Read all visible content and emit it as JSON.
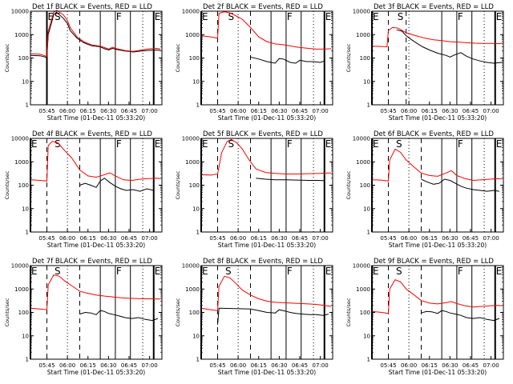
{
  "colors": {
    "events": "#000000",
    "lld": "#ff0000",
    "frame": "#000000",
    "background": "#ffffff"
  },
  "figure": {
    "xlabel": "Start Time (01-Dec-11 05:33:20)",
    "ylabel": "Counts/sec",
    "ytick_labels": [
      "1",
      "10",
      "100",
      "1000",
      "10000"
    ],
    "xtick_labels": [
      "05:45",
      "06:00",
      "06:15",
      "06:30",
      "06:45",
      "07:00"
    ],
    "event_letters": [
      "E",
      "S",
      "F",
      "E"
    ]
  },
  "chart_data": [
    {
      "type": "line",
      "title": "Det 1f BLACK = Events, RED = LLD",
      "scale": "log",
      "ylim": [
        1,
        10000
      ],
      "xlim": [
        "05:33",
        "07:09"
      ],
      "series": [
        {
          "name": "BLACK = Events",
          "x": [
            "05:33",
            "05:40",
            "05:45",
            "05:46",
            "05:50",
            "05:52",
            "05:57",
            "06:00",
            "06:02",
            "06:07",
            "06:12",
            "06:15",
            "06:18",
            "06:24",
            "06:27",
            "06:30",
            "06:33",
            "06:36",
            "06:42",
            "06:45",
            "06:48",
            "06:54",
            "06:58",
            "07:05",
            "07:08"
          ],
          "y": [
            130,
            125,
            105,
            1000,
            7000,
            9000,
            5000,
            3000,
            1500,
            700,
            450,
            380,
            330,
            300,
            250,
            220,
            260,
            230,
            200,
            190,
            180,
            200,
            210,
            220,
            210
          ]
        },
        {
          "name": "RED = LLD",
          "x": [
            "05:33",
            "05:40",
            "05:45",
            "05:46",
            "05:50",
            "05:52",
            "05:57",
            "06:00",
            "06:02",
            "06:07",
            "06:12",
            "06:15",
            "06:18",
            "06:24",
            "06:27",
            "06:30",
            "06:33",
            "06:36",
            "06:42",
            "06:45",
            "06:48",
            "06:54",
            "06:58",
            "07:05",
            "07:08"
          ],
          "y": [
            150,
            145,
            115,
            1400,
            9000,
            11000,
            7000,
            4000,
            2000,
            800,
            500,
            420,
            360,
            320,
            280,
            240,
            290,
            250,
            210,
            200,
            190,
            220,
            240,
            260,
            240
          ]
        }
      ],
      "event_lines": {
        "E": [
          "05:45",
          "07:03"
        ],
        "dashed": [
          "05:45",
          "06:09"
        ],
        "S": "05:50",
        "F": [
          "06:24",
          "06:35",
          "06:46"
        ],
        "dotted": [
          "06:00",
          "06:55"
        ]
      }
    },
    {
      "type": "line",
      "title": "Det 2f BLACK = Events, RED = LLD",
      "scale": "log",
      "ylim": [
        1,
        10000
      ],
      "xlim": [
        "05:33",
        "07:09"
      ],
      "series": [
        {
          "name": "BLACK = Events",
          "x": [
            "06:09",
            "06:15",
            "06:21",
            "06:27",
            "06:30",
            "06:33",
            "06:38",
            "06:42",
            "06:45",
            "06:50",
            "06:55",
            "07:00",
            "07:03"
          ],
          "y": [
            110,
            90,
            70,
            60,
            95,
            90,
            65,
            60,
            80,
            70,
            70,
            65,
            75
          ]
        },
        {
          "name": "RED = LLD",
          "x": [
            "05:33",
            "05:40",
            "05:45",
            "05:46",
            "05:50",
            "05:54",
            "05:58",
            "06:03",
            "06:09",
            "06:15",
            "06:21",
            "06:27",
            "06:33",
            "06:39",
            "06:45",
            "06:51",
            "06:57",
            "07:03",
            "07:08"
          ],
          "y": [
            900,
            800,
            700,
            8000,
            9500,
            8500,
            6500,
            4500,
            2000,
            800,
            500,
            400,
            370,
            320,
            280,
            260,
            240,
            240,
            250
          ]
        }
      ],
      "event_lines": {
        "E": [
          "05:33",
          "07:03"
        ],
        "dashed": [
          "05:45",
          "06:09"
        ],
        "S": "05:52",
        "F": [
          "06:24",
          "06:35",
          "06:46"
        ],
        "dotted": [
          "06:00",
          "06:55"
        ]
      }
    },
    {
      "type": "line",
      "title": "Det 3f BLACK = Events, RED = LLD",
      "scale": "log",
      "ylim": [
        1,
        10000
      ],
      "xlim": [
        "05:33",
        "07:09"
      ],
      "series": [
        {
          "name": "BLACK = Events",
          "x": [
            "05:51",
            "05:55",
            "05:58",
            "06:02",
            "06:06",
            "06:10",
            "06:15",
            "06:21",
            "06:27",
            "06:30",
            "06:34",
            "06:38",
            "06:42",
            "06:47",
            "06:52",
            "06:57",
            "07:02",
            "07:08"
          ],
          "y": [
            1600,
            1400,
            900,
            600,
            420,
            300,
            220,
            160,
            130,
            110,
            140,
            170,
            120,
            90,
            75,
            65,
            60,
            65
          ]
        },
        {
          "name": "RED = LLD",
          "x": [
            "05:33",
            "05:40",
            "05:44",
            "05:45",
            "05:48",
            "05:52",
            "05:58",
            "06:05",
            "06:12",
            "06:18",
            "06:24",
            "06:30",
            "06:36",
            "06:42",
            "06:48",
            "06:54",
            "07:00",
            "07:06",
            "07:08"
          ],
          "y": [
            320,
            310,
            300,
            1500,
            2000,
            1900,
            1200,
            900,
            700,
            600,
            550,
            500,
            480,
            450,
            430,
            420,
            420,
            410,
            430
          ]
        }
      ],
      "event_lines": {
        "E": [
          "05:33",
          "07:03"
        ],
        "dashed": [
          "05:45",
          "05:58"
        ],
        "S": "05:51",
        "F": [
          "06:24",
          "06:35",
          "06:46"
        ],
        "dotted": [
          "06:00",
          "06:55"
        ]
      }
    },
    {
      "type": "line",
      "title": "Det 4f BLACK = Events, RED = LLD",
      "scale": "log",
      "ylim": [
        1,
        10000
      ],
      "xlim": [
        "05:33",
        "07:09"
      ],
      "series": [
        {
          "name": "BLACK = Events",
          "x": [
            "06:09",
            "06:13",
            "06:17",
            "06:21",
            "06:24",
            "06:27",
            "06:31",
            "06:35",
            "06:39",
            "06:43",
            "06:48",
            "06:53",
            "06:58",
            "07:03"
          ],
          "y": [
            100,
            120,
            100,
            80,
            150,
            200,
            130,
            90,
            70,
            60,
            65,
            55,
            70,
            60
          ]
        },
        {
          "name": "RED = LLD",
          "x": [
            "05:33",
            "05:40",
            "05:45",
            "05:46",
            "05:49",
            "05:53",
            "05:58",
            "06:03",
            "06:09",
            "06:15",
            "06:21",
            "06:27",
            "06:31",
            "06:35",
            "06:41",
            "06:47",
            "06:53",
            "06:59",
            "07:05",
            "07:08"
          ],
          "y": [
            170,
            160,
            150,
            5000,
            7500,
            6500,
            3000,
            1500,
            450,
            250,
            220,
            280,
            340,
            250,
            170,
            160,
            180,
            190,
            200,
            190
          ]
        }
      ],
      "event_lines": {
        "E": [
          "05:33",
          "07:03"
        ],
        "dashed": [
          "05:45",
          "06:09"
        ],
        "S": "05:50",
        "F": [
          "06:24",
          "06:35",
          "06:46"
        ],
        "dotted": [
          "06:00",
          "06:55"
        ]
      }
    },
    {
      "type": "line",
      "title": "Det 5f BLACK = Events, RED = LLD",
      "scale": "log",
      "ylim": [
        1,
        10000
      ],
      "xlim": [
        "05:33",
        "07:09"
      ],
      "series": [
        {
          "name": "BLACK = Events",
          "x": [
            "06:13",
            "06:20",
            "06:27",
            "06:35",
            "06:43",
            "06:51",
            "06:59",
            "07:03"
          ],
          "y": [
            200,
            180,
            170,
            170,
            165,
            160,
            160,
            155
          ]
        },
        {
          "name": "RED = LLD",
          "x": [
            "05:33",
            "05:40",
            "05:45",
            "05:48",
            "05:52",
            "05:55",
            "05:59",
            "06:03",
            "06:08",
            "06:13",
            "06:20",
            "06:27",
            "06:35",
            "06:43",
            "06:51",
            "06:59",
            "07:06",
            "07:08"
          ],
          "y": [
            280,
            270,
            300,
            2500,
            7500,
            9000,
            6500,
            3500,
            1200,
            500,
            350,
            320,
            300,
            300,
            310,
            320,
            330,
            330
          ]
        }
      ],
      "event_lines": {
        "E": [
          "05:33",
          "07:03"
        ],
        "dashed": [
          "05:45",
          "06:09"
        ],
        "S": "05:52",
        "F": [
          "06:24",
          "06:35",
          "06:46"
        ],
        "dotted": [
          "06:00",
          "06:55"
        ]
      }
    },
    {
      "type": "line",
      "title": "Det 6f BLACK = Events, RED = LLD",
      "scale": "log",
      "ylim": [
        1,
        10000
      ],
      "xlim": [
        "05:33",
        "07:09"
      ],
      "series": [
        {
          "name": "BLACK = Events",
          "x": [
            "06:09",
            "06:13",
            "06:18",
            "06:22",
            "06:26",
            "06:30",
            "06:34",
            "06:38",
            "06:42",
            "06:47",
            "06:52",
            "06:57",
            "07:02",
            "07:06"
          ],
          "y": [
            180,
            140,
            110,
            120,
            180,
            160,
            120,
            90,
            75,
            65,
            60,
            55,
            60,
            55
          ]
        },
        {
          "name": "RED = LLD",
          "x": [
            "05:33",
            "05:40",
            "05:45",
            "05:46",
            "05:50",
            "05:54",
            "05:58",
            "06:03",
            "06:09",
            "06:15",
            "06:21",
            "06:27",
            "06:31",
            "06:35",
            "06:41",
            "06:47",
            "06:53",
            "06:59",
            "07:05",
            "07:08"
          ],
          "y": [
            170,
            165,
            150,
            1200,
            3500,
            2500,
            1200,
            650,
            330,
            260,
            240,
            330,
            420,
            260,
            190,
            160,
            170,
            180,
            190,
            185
          ]
        }
      ],
      "event_lines": {
        "E": [
          "05:33",
          "07:03"
        ],
        "dashed": [
          "05:45",
          "06:09"
        ],
        "S": "05:50",
        "F": [
          "06:24",
          "06:35",
          "06:46"
        ],
        "dotted": [
          "06:00",
          "06:55"
        ]
      }
    },
    {
      "type": "line",
      "title": "Det 7f BLACK = Events, RED = LLD",
      "scale": "log",
      "ylim": [
        1,
        10000
      ],
      "xlim": [
        "05:33",
        "07:09"
      ],
      "series": [
        {
          "name": "BLACK = Events",
          "x": [
            "06:09",
            "06:13",
            "06:17",
            "06:21",
            "06:24",
            "06:27",
            "06:30",
            "06:34",
            "06:38",
            "06:42",
            "06:47",
            "06:52",
            "06:57",
            "07:02",
            "07:06"
          ],
          "y": [
            85,
            100,
            95,
            80,
            120,
            110,
            90,
            80,
            70,
            60,
            55,
            60,
            50,
            45,
            55
          ]
        },
        {
          "name": "RED = LLD",
          "x": [
            "05:33",
            "05:40",
            "05:45",
            "05:46",
            "05:50",
            "05:54",
            "05:58",
            "06:03",
            "06:09",
            "06:15",
            "06:21",
            "06:27",
            "06:33",
            "06:39",
            "06:45",
            "06:51",
            "06:57",
            "07:03",
            "07:08"
          ],
          "y": [
            150,
            140,
            130,
            1500,
            4000,
            3500,
            2200,
            1400,
            800,
            650,
            550,
            500,
            460,
            420,
            400,
            390,
            380,
            380,
            370
          ]
        }
      ],
      "event_lines": {
        "E": [
          "05:33",
          "07:03"
        ],
        "dashed": [
          "05:45",
          "06:09"
        ],
        "S": "05:50",
        "F": [
          "06:24",
          "06:35",
          "06:46"
        ],
        "dotted": [
          "06:00",
          "06:55"
        ]
      }
    },
    {
      "type": "line",
      "title": "Det 8f BLACK = Events, RED = LLD",
      "scale": "log",
      "ylim": [
        1,
        10000
      ],
      "xlim": [
        "05:33",
        "07:09"
      ],
      "series": [
        {
          "name": "BLACK = Events",
          "x": [
            "05:45",
            "05:46",
            "06:09",
            "06:15",
            "06:21",
            "06:27",
            "06:30",
            "06:34",
            "06:38",
            "06:42",
            "06:47",
            "06:52",
            "06:57",
            "07:02",
            "07:06"
          ],
          "y": [
            30,
            150,
            140,
            120,
            100,
            95,
            130,
            115,
            100,
            90,
            85,
            80,
            80,
            75,
            85
          ]
        },
        {
          "name": "RED = LLD",
          "x": [
            "05:33",
            "05:40",
            "05:45",
            "05:46",
            "05:50",
            "05:54",
            "05:58",
            "06:03",
            "06:09",
            "06:15",
            "06:21",
            "06:27",
            "06:33",
            "06:39",
            "06:45",
            "06:51",
            "06:57",
            "07:03",
            "07:08"
          ],
          "y": [
            150,
            130,
            120,
            1300,
            3500,
            3000,
            1800,
            900,
            550,
            380,
            300,
            270,
            260,
            250,
            240,
            230,
            220,
            200,
            180
          ]
        }
      ],
      "event_lines": {
        "E": [
          "05:33",
          "07:03"
        ],
        "dashed": [
          "05:45",
          "06:09"
        ],
        "S": "05:50",
        "F": [
          "06:24",
          "06:35",
          "06:46"
        ],
        "dotted": [
          "06:00",
          "06:55"
        ]
      }
    },
    {
      "type": "line",
      "title": "Det 9f BLACK = Events, RED = LLD",
      "scale": "log",
      "ylim": [
        1,
        10000
      ],
      "xlim": [
        "05:33",
        "07:09"
      ],
      "series": [
        {
          "name": "BLACK = Events",
          "x": [
            "06:09",
            "06:13",
            "06:17",
            "06:21",
            "06:24",
            "06:27",
            "06:30",
            "06:34",
            "06:38",
            "06:42",
            "06:47",
            "06:52",
            "06:57",
            "07:02",
            "07:06"
          ],
          "y": [
            95,
            110,
            105,
            90,
            120,
            110,
            95,
            85,
            75,
            60,
            55,
            60,
            50,
            45,
            55
          ]
        },
        {
          "name": "RED = LLD",
          "x": [
            "05:33",
            "05:40",
            "05:45",
            "05:46",
            "05:50",
            "05:54",
            "05:58",
            "06:03",
            "06:09",
            "06:15",
            "06:21",
            "06:27",
            "06:31",
            "06:35",
            "06:41",
            "06:47",
            "06:53",
            "06:59",
            "07:05",
            "07:08"
          ],
          "y": [
            110,
            100,
            90,
            1000,
            2500,
            2000,
            1000,
            600,
            320,
            250,
            230,
            260,
            290,
            240,
            190,
            170,
            180,
            190,
            200,
            190
          ]
        }
      ],
      "event_lines": {
        "E": [
          "05:33",
          "07:03"
        ],
        "dashed": [
          "05:45",
          "06:09"
        ],
        "S": "05:50",
        "F": [
          "06:24",
          "06:35",
          "06:46"
        ],
        "dotted": [
          "06:00",
          "06:55"
        ]
      }
    }
  ]
}
